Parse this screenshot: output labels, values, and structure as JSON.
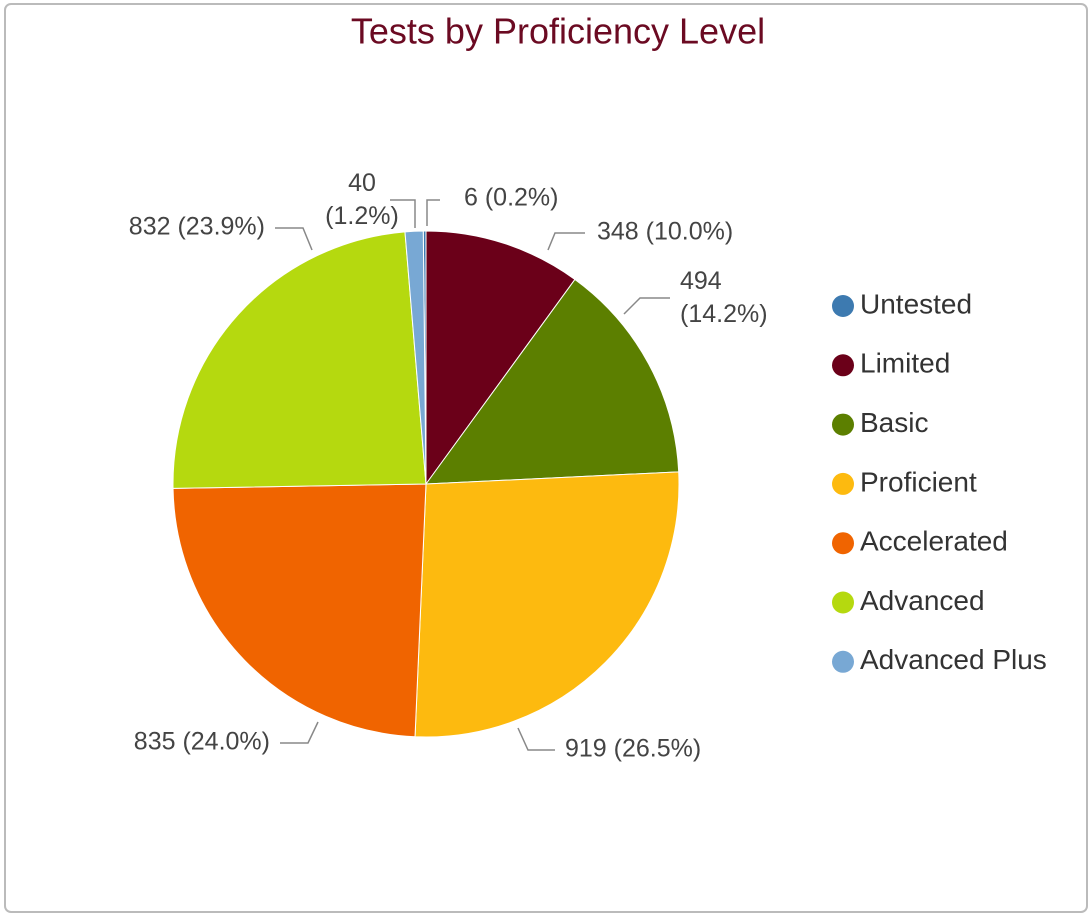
{
  "chart_data": {
    "type": "pie",
    "title": "Tests by Proficiency Level",
    "categories": [
      "Untested",
      "Limited",
      "Basic",
      "Proficient",
      "Accelerated",
      "Advanced",
      "Advanced Plus"
    ],
    "values": [
      6,
      348,
      494,
      919,
      835,
      832,
      40
    ],
    "value_labels": [
      "6 (0.2%)",
      "348 (10.0%)",
      "494 (14.2%)",
      "919 (26.5%)",
      "835 (24.0%)",
      "832 (23.9%)",
      "40 (1.2%)"
    ],
    "colors": [
      "#3d7ab0",
      "#6b0019",
      "#5c7f00",
      "#fdba0f",
      "#f06400",
      "#b5d90f",
      "#78a8d4"
    ],
    "legend": "right"
  }
}
